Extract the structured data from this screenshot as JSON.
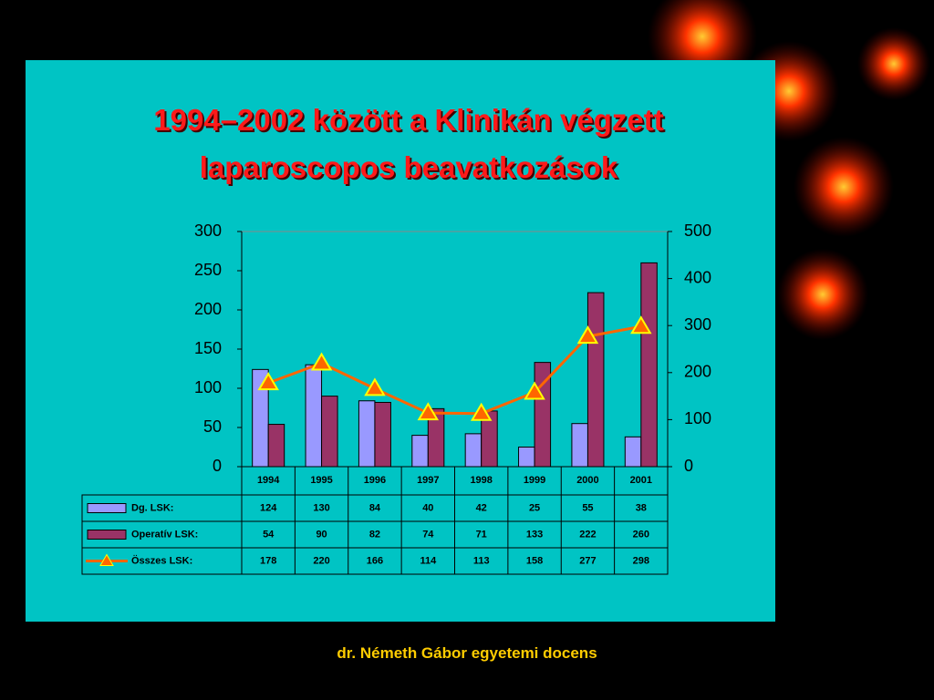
{
  "chart_data": {
    "type": "bar-line",
    "title": "1994–2002 között a Klinikán végzett laparoscopos beavatkozások",
    "categories": [
      "1994",
      "1995",
      "1996",
      "1997",
      "1998",
      "1999",
      "2000",
      "2001"
    ],
    "series": [
      {
        "name": "Dg. LSK:",
        "type": "bar",
        "color": "#9999ff",
        "values": [
          124,
          130,
          84,
          40,
          42,
          25,
          55,
          38
        ]
      },
      {
        "name": "Operatív LSK:",
        "type": "bar",
        "color": "#993366",
        "values": [
          54,
          90,
          82,
          74,
          71,
          133,
          222,
          260
        ]
      },
      {
        "name": "Összes LSK:",
        "type": "line",
        "axis": "y2",
        "color": "#ff6600",
        "values": [
          178,
          220,
          166,
          114,
          113,
          158,
          277,
          298
        ]
      }
    ],
    "ylim": [
      0,
      300
    ],
    "yticks": [
      0,
      50,
      100,
      150,
      200,
      250,
      300
    ],
    "y2lim": [
      0,
      500
    ],
    "y2ticks": [
      0,
      100,
      200,
      300,
      400,
      500
    ]
  },
  "footer": "dr. Németh Gábor egyetemi docens"
}
